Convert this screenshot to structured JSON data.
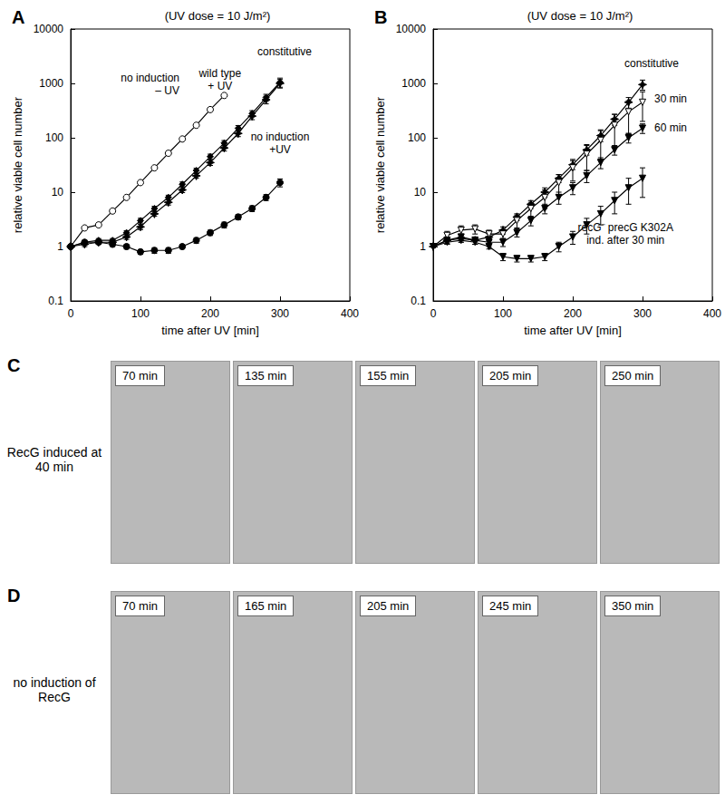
{
  "chart_data": [
    {
      "type": "line",
      "panel_label": "A",
      "title": "(UV dose = 10 J/m²)",
      "x_label": "time after UV [min]",
      "y_label": "relative viable cell number",
      "log": "y",
      "grid": false,
      "xlim": [
        0,
        400
      ],
      "xticks": [
        0,
        100,
        200,
        300,
        400
      ],
      "ylim": [
        0.1,
        10000
      ],
      "yticks": [
        0.1,
        1,
        10,
        100,
        1000,
        10000
      ],
      "series": [
        {
          "name": "no induction\n– UV",
          "color": "#000000",
          "marker": "open_circle",
          "line_style": "solid",
          "x": [
            0,
            20,
            40,
            60,
            80,
            100,
            120,
            140,
            160,
            180,
            200,
            220
          ],
          "values": [
            1,
            2.2,
            2.5,
            4.5,
            8,
            15,
            28,
            52,
            95,
            170,
            330,
            600
          ]
        },
        {
          "name": "wild type\n+ UV",
          "color": "#000000",
          "marker": "diamond",
          "line_style": "solid",
          "x": [
            0,
            20,
            40,
            60,
            80,
            100,
            120,
            140,
            160,
            180,
            200,
            220,
            240,
            260,
            280,
            300
          ],
          "values": [
            1,
            1.2,
            1.3,
            1.3,
            1.8,
            3,
            5,
            8,
            14,
            25,
            45,
            80,
            150,
            280,
            550,
            1050
          ],
          "errors": [
            0.05,
            0.1,
            0.1,
            0.1,
            0.15,
            0.3,
            0.5,
            0.8,
            1.4,
            2.5,
            5,
            9,
            18,
            35,
            80,
            200
          ]
        },
        {
          "name": "constitutive",
          "color": "#000000",
          "marker": "star",
          "line_style": "solid",
          "x": [
            0,
            20,
            40,
            60,
            80,
            100,
            120,
            140,
            160,
            180,
            200,
            220,
            240,
            260,
            280,
            300
          ],
          "values": [
            1,
            1.1,
            1.2,
            1.2,
            1.5,
            2.3,
            4,
            6.5,
            11,
            20,
            35,
            65,
            120,
            250,
            500,
            1000
          ],
          "errors": [
            0.05,
            0.1,
            0.1,
            0.1,
            0.15,
            0.25,
            0.4,
            0.7,
            1.2,
            2,
            4,
            8,
            15,
            35,
            80,
            180
          ]
        },
        {
          "name": "no induction\n+UV",
          "color": "#000000",
          "marker": "circle",
          "line_style": "solid",
          "x": [
            0,
            20,
            40,
            60,
            80,
            100,
            120,
            140,
            160,
            180,
            200,
            220,
            240,
            260,
            280,
            300
          ],
          "values": [
            1,
            1.2,
            1.2,
            1.1,
            1.0,
            0.8,
            0.85,
            0.85,
            1.0,
            1.3,
            1.8,
            2.5,
            3.5,
            5,
            8,
            15
          ],
          "errors": [
            0.05,
            0.1,
            0.1,
            0.1,
            0.1,
            0.08,
            0.1,
            0.1,
            0.1,
            0.15,
            0.2,
            0.3,
            0.4,
            0.6,
            1,
            2.5
          ]
        }
      ]
    },
    {
      "type": "line",
      "panel_label": "B",
      "title": "(UV dose = 10 J/m²)",
      "x_label": "time after UV [min]",
      "y_label": "relative viable cell number",
      "log": "y",
      "grid": false,
      "xlim": [
        0,
        400
      ],
      "xticks": [
        0,
        100,
        200,
        300,
        400
      ],
      "ylim": [
        0.1,
        10000
      ],
      "yticks": [
        0.1,
        1,
        10,
        100,
        1000,
        10000
      ],
      "series": [
        {
          "name": "constitutive",
          "color": "#000000",
          "marker": "star",
          "line_style": "solid",
          "x": [
            0,
            20,
            40,
            60,
            80,
            100,
            120,
            140,
            160,
            180,
            200,
            220,
            240,
            260,
            280,
            300
          ],
          "values": [
            1,
            1.3,
            1.4,
            1.3,
            1.5,
            2,
            3.5,
            6,
            10,
            18,
            32,
            60,
            110,
            220,
            450,
            950
          ],
          "errors": [
            0.05,
            0.15,
            0.2,
            0.2,
            0.2,
            0.3,
            0.5,
            1,
            2,
            3,
            6,
            12,
            25,
            50,
            100,
            200
          ]
        },
        {
          "name": "30 min",
          "color": "#000000",
          "marker": "open_triangle_down",
          "line_style": "solid",
          "x": [
            0,
            20,
            40,
            60,
            80,
            100,
            120,
            140,
            160,
            180,
            200,
            220,
            240,
            260,
            280,
            300
          ],
          "values": [
            1,
            1.6,
            2,
            2.1,
            1.7,
            1.7,
            3,
            5,
            8,
            15,
            28,
            50,
            90,
            170,
            300,
            450
          ],
          "errors": [
            0.05,
            0.3,
            0.4,
            0.4,
            0.3,
            0.3,
            0.8,
            1.5,
            3,
            6,
            12,
            25,
            50,
            100,
            180,
            250
          ]
        },
        {
          "name": "60 min",
          "color": "#000000",
          "marker": "triangle_down",
          "line_style": "solid",
          "x": [
            0,
            20,
            40,
            60,
            80,
            100,
            120,
            140,
            160,
            180,
            200,
            220,
            240,
            260,
            280,
            300
          ],
          "values": [
            1,
            1.3,
            1.5,
            1.3,
            1.2,
            1.2,
            1.8,
            3,
            5,
            8,
            12,
            20,
            35,
            60,
            100,
            150
          ],
          "errors": [
            0.05,
            0.2,
            0.2,
            0.2,
            0.2,
            0.2,
            0.3,
            0.6,
            1,
            2,
            3,
            5,
            8,
            12,
            20,
            30
          ]
        },
        {
          "name": "recG⁻ precG K302A\nind. after 30 min",
          "color": "#000000",
          "marker": "triangle_down",
          "line_style": "solid",
          "x": [
            0,
            20,
            40,
            60,
            80,
            100,
            120,
            140,
            160,
            180,
            200,
            220,
            240,
            260,
            280,
            300
          ],
          "values": [
            1,
            1.2,
            1.3,
            1.2,
            1.0,
            0.65,
            0.6,
            0.6,
            0.65,
            1.0,
            1.5,
            2.5,
            4,
            7,
            12,
            18
          ],
          "errors": [
            0.05,
            0.1,
            0.1,
            0.1,
            0.1,
            0.1,
            0.08,
            0.08,
            0.1,
            0.2,
            0.4,
            0.8,
            1.5,
            3,
            6,
            10
          ]
        }
      ]
    }
  ],
  "image_panels": [
    {
      "panel_label": "C",
      "row_label": "RecG induced at 40 min",
      "frames": [
        "70 min",
        "135 min",
        "155 min",
        "205 min",
        "250 min"
      ]
    },
    {
      "panel_label": "D",
      "row_label": "no induction of RecG",
      "frames": [
        "70 min",
        "165 min",
        "205 min",
        "245 min",
        "350 min"
      ]
    }
  ]
}
